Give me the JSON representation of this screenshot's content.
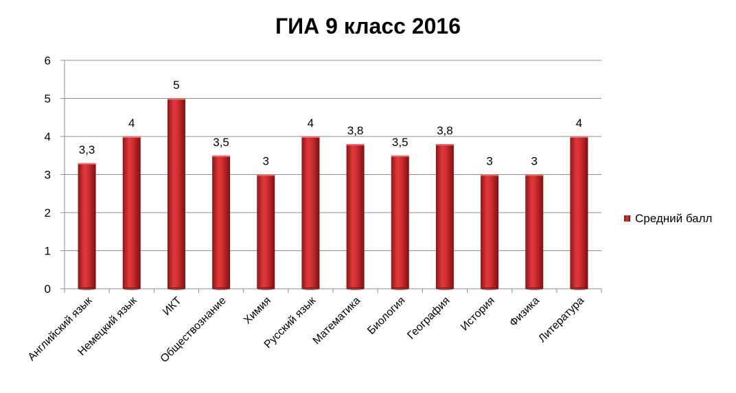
{
  "chart_data": {
    "type": "bar",
    "title": "ГИА 9 класс 2016",
    "categories": [
      "Английский язык",
      "Немецкий язык",
      "ИКТ",
      "Обществознание",
      "Химия",
      "Русский язык",
      "Математика",
      "Биология",
      "География",
      "История",
      "Физика",
      "Литература"
    ],
    "series": [
      {
        "name": "Средний балл",
        "values": [
          3.3,
          4,
          5,
          3.5,
          3,
          4,
          3.8,
          3.5,
          3.8,
          3,
          3,
          4
        ]
      }
    ],
    "data_labels": [
      "3,3",
      "4",
      "5",
      "3,5",
      "3",
      "4",
      "3,8",
      "3,5",
      "3,8",
      "3",
      "3",
      "4"
    ],
    "yticks": [
      "0",
      "1",
      "2",
      "3",
      "4",
      "5",
      "6"
    ],
    "ylim": [
      0,
      6
    ],
    "xlabel": "",
    "ylabel": "",
    "grid": true,
    "legend_position": "right",
    "bar_color": "#c0282a"
  }
}
